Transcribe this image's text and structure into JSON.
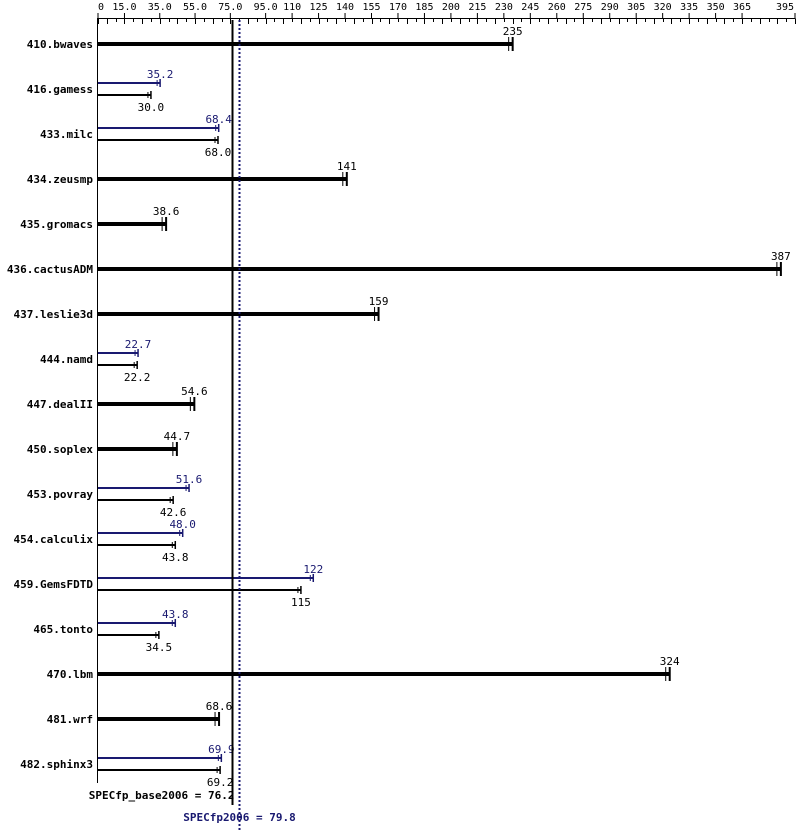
{
  "chart_data": {
    "type": "bar",
    "x_tick_labels": [
      "0",
      "15.0",
      "35.0",
      "55.0",
      "75.0",
      "95.0",
      "110",
      "125",
      "140",
      "155",
      "170",
      "185",
      "200",
      "215",
      "230",
      "245",
      "260",
      "275",
      "290",
      "305",
      "320",
      "335",
      "350",
      "365",
      "395"
    ],
    "x_tick_values": [
      0,
      15,
      35,
      55,
      75,
      95,
      110,
      125,
      140,
      155,
      170,
      185,
      200,
      215,
      230,
      245,
      260,
      275,
      290,
      305,
      320,
      335,
      350,
      365,
      395
    ],
    "xlim": [
      0,
      395
    ],
    "colors": {
      "base": "#000000",
      "peak": "#191970"
    },
    "benchmarks": [
      {
        "name": "410.bwaves",
        "peak": null,
        "base": 235,
        "base_label": "235"
      },
      {
        "name": "416.gamess",
        "peak": 35.2,
        "peak_label": "35.2",
        "base": 30.0,
        "base_label": "30.0"
      },
      {
        "name": "433.milc",
        "peak": 68.4,
        "peak_label": "68.4",
        "base": 68.0,
        "base_label": "68.0"
      },
      {
        "name": "434.zeusmp",
        "peak": null,
        "base": 141,
        "base_label": "141"
      },
      {
        "name": "435.gromacs",
        "peak": null,
        "base": 38.6,
        "base_label": "38.6"
      },
      {
        "name": "436.cactusADM",
        "peak": null,
        "base": 387,
        "base_label": "387"
      },
      {
        "name": "437.leslie3d",
        "peak": null,
        "base": 159,
        "base_label": "159"
      },
      {
        "name": "444.namd",
        "peak": 22.7,
        "peak_label": "22.7",
        "base": 22.2,
        "base_label": "22.2"
      },
      {
        "name": "447.dealII",
        "peak": null,
        "base": 54.6,
        "base_label": "54.6"
      },
      {
        "name": "450.soplex",
        "peak": null,
        "base": 44.7,
        "base_label": "44.7"
      },
      {
        "name": "453.povray",
        "peak": 51.6,
        "peak_label": "51.6",
        "base": 42.6,
        "base_label": "42.6"
      },
      {
        "name": "454.calculix",
        "peak": 48.0,
        "peak_label": "48.0",
        "base": 43.8,
        "base_label": "43.8"
      },
      {
        "name": "459.GemsFDTD",
        "peak": 122,
        "peak_label": "122",
        "base": 115,
        "base_label": "115"
      },
      {
        "name": "465.tonto",
        "peak": 43.8,
        "peak_label": "43.8",
        "base": 34.5,
        "base_label": "34.5"
      },
      {
        "name": "470.lbm",
        "peak": null,
        "base": 324,
        "base_label": "324"
      },
      {
        "name": "481.wrf",
        "peak": null,
        "base": 68.6,
        "base_label": "68.6"
      },
      {
        "name": "482.sphinx3",
        "peak": 69.9,
        "peak_label": "69.9",
        "base": 69.2,
        "base_label": "69.2"
      }
    ],
    "reference_lines": [
      {
        "kind": "base",
        "value": 76.2,
        "label": "SPECfp_base2006 = 76.2"
      },
      {
        "kind": "peak",
        "value": 79.8,
        "label": "SPECfp2006 = 79.8"
      }
    ]
  }
}
